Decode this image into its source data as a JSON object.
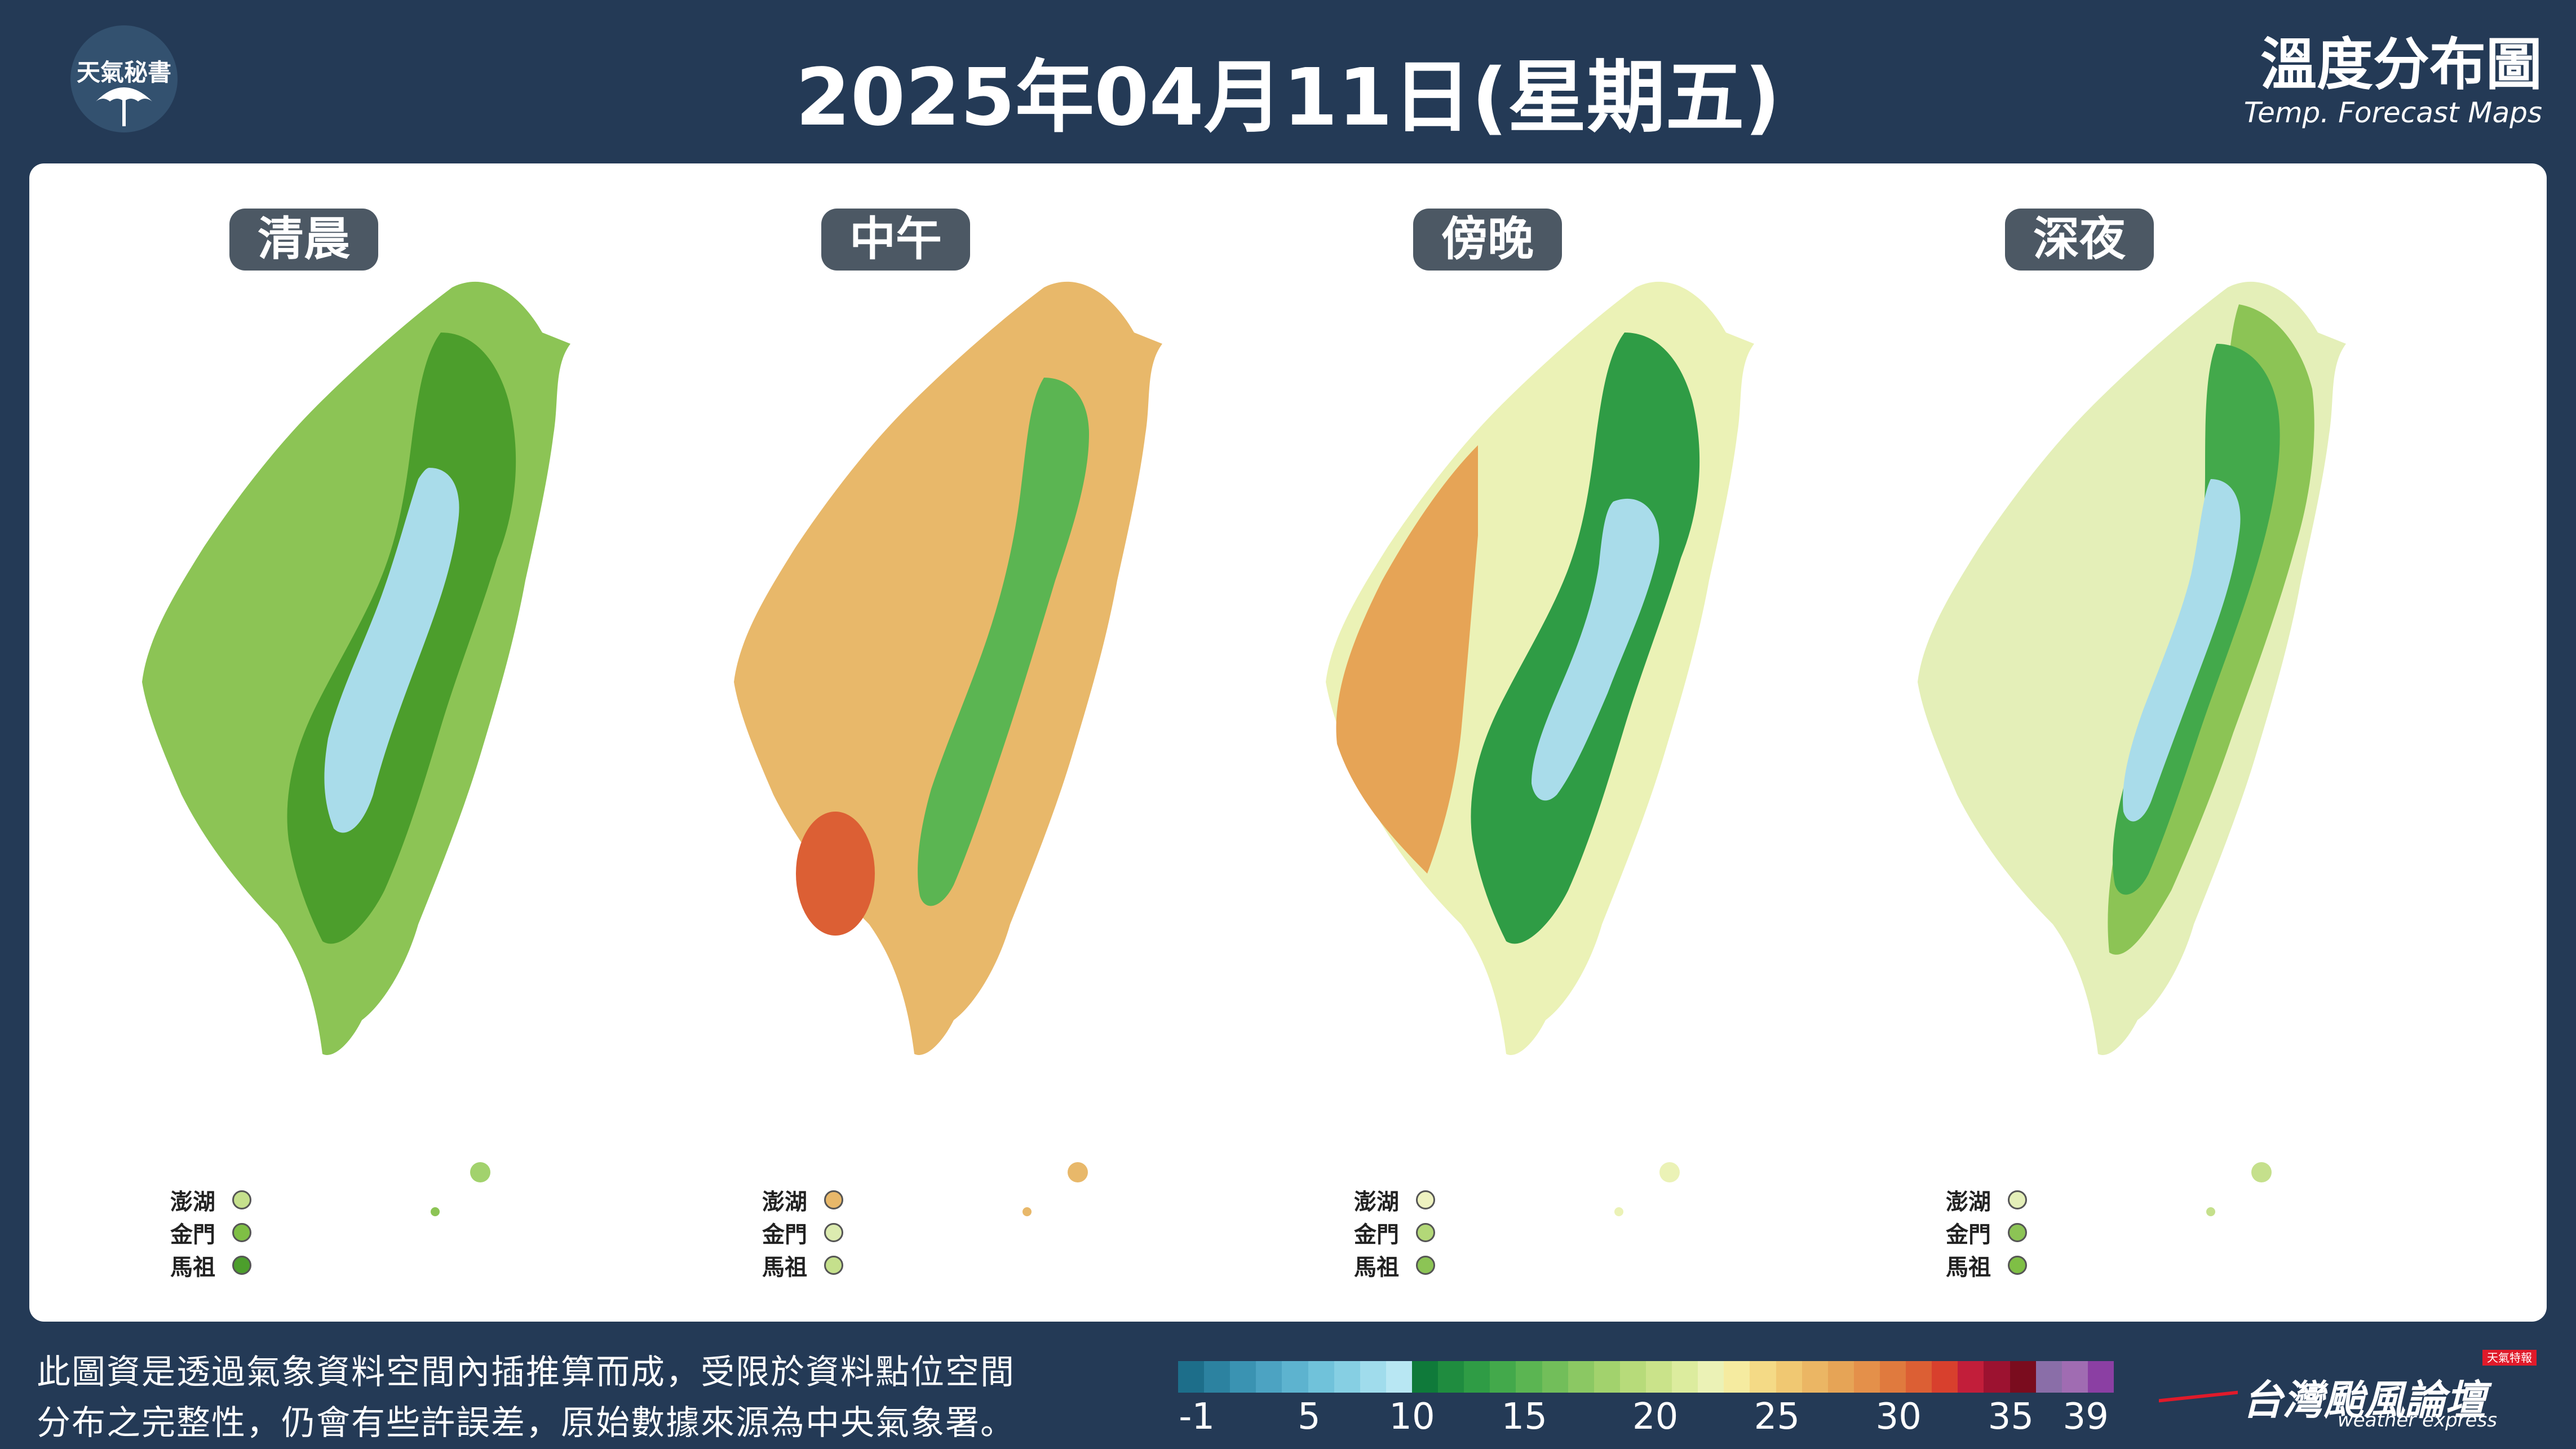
{
  "header": {
    "logo_text": "天氣秘書",
    "title": "2025年04月11日(星期五)",
    "corner_title_zh": "溫度分布圖",
    "corner_title_en": "Temp. Forecast Maps"
  },
  "maps": [
    {
      "label": "清晨",
      "islands": [
        {
          "name": "澎湖",
          "color": "#c5e08c"
        },
        {
          "name": "金門",
          "color": "#7fbf45"
        },
        {
          "name": "馬祖",
          "color": "#4c9e2c"
        }
      ]
    },
    {
      "label": "中午",
      "islands": [
        {
          "name": "澎湖",
          "color": "#e8b86a"
        },
        {
          "name": "金門",
          "color": "#dcebb0"
        },
        {
          "name": "馬祖",
          "color": "#c5e08c"
        }
      ]
    },
    {
      "label": "傍晚",
      "islands": [
        {
          "name": "澎湖",
          "color": "#eef2c0"
        },
        {
          "name": "金門",
          "color": "#b3d878"
        },
        {
          "name": "馬祖",
          "color": "#8cc455"
        }
      ]
    },
    {
      "label": "深夜",
      "islands": [
        {
          "name": "澎湖",
          "color": "#e4efb8"
        },
        {
          "name": "金門",
          "color": "#8cc455"
        },
        {
          "name": "馬祖",
          "color": "#7fbf45"
        }
      ]
    }
  ],
  "footer": {
    "note_line1": "此圖資是透過氣象資料空間內插推算而成，受限於資料點位空間",
    "note_line2": "分布之完整性，仍會有些許誤差，原始數據來源為中央氣象署。",
    "scale_colors": [
      "#1d6e8a",
      "#2c82a0",
      "#3a93b2",
      "#4ca3c2",
      "#5db3cf",
      "#70c2da",
      "#86cfe3",
      "#a0dcec",
      "#b8e7f3",
      "#0f7a3a",
      "#1f8c3f",
      "#2f9c45",
      "#43a94b",
      "#5bb552",
      "#72be5a",
      "#8bc863",
      "#a2d26d",
      "#b7db7a",
      "#cae38a",
      "#dcec9e",
      "#ebf2b6",
      "#f5eba0",
      "#f4da86",
      "#f0c872",
      "#ebb664",
      "#e6a456",
      "#e4904a",
      "#e07a3e",
      "#dc5f34",
      "#d8402d",
      "#c21e3a",
      "#9c1230",
      "#7a0c1e",
      "#8a6ea8",
      "#a06cb2",
      "#8b3fa3"
    ],
    "scale_labels": [
      "-1",
      "5",
      "10",
      "15",
      "20",
      "25",
      "30",
      "35",
      "39"
    ],
    "brand_zh": "台灣颱風論壇",
    "brand_en": "weather express",
    "brand_stamp": "天氣特報"
  }
}
